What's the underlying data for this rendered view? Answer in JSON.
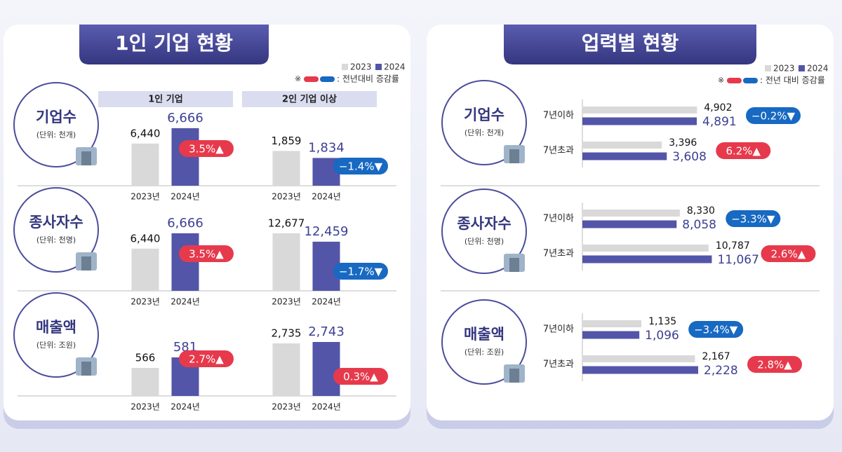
{
  "chart_data": [
    {
      "type": "bar",
      "title": "1인 기업 현황",
      "series": [
        {
          "name": "2023",
          "color": "#d9d9d9"
        },
        {
          "name": "2024",
          "color": "#5355a8"
        }
      ],
      "change_colors": [
        "#e63a4c",
        "#1769c2"
      ],
      "note_mark": "※",
      "note": ": 전년대비 증감률",
      "columns": [
        "1인 기업",
        "2인 기업 이상"
      ],
      "categories": [
        "2023년",
        "2024년"
      ],
      "rows": [
        {
          "label": "기업수",
          "unit": "(단위: 천개)",
          "charts": [
            {
              "values": [
                6440,
                6666
              ],
              "value_labels": [
                "6,440",
                "6,666"
              ],
              "change": 3.5,
              "change_label": "3.5%▲",
              "ylim": [
                5820,
                6850
              ]
            },
            {
              "values": [
                1859,
                1834
              ],
              "value_labels": [
                "1,859",
                "1,834"
              ],
              "change": -1.4,
              "change_label": "−1.4%▼",
              "ylim": [
                1735,
                1985
              ]
            }
          ]
        },
        {
          "label": "종사자수",
          "unit": "(단위: 천명)",
          "charts": [
            {
              "values": [
                6440,
                6666
              ],
              "value_labels": [
                "6,440",
                "6,666"
              ],
              "change": 3.5,
              "change_label": "3.5%▲",
              "ylim": [
                5820,
                6850
              ]
            },
            {
              "values": [
                12677,
                12459
              ],
              "value_labels": [
                "12,677",
                "12,459"
              ],
              "change": -1.7,
              "change_label": "−1.7%▼",
              "ylim": [
                11190,
                13000
              ]
            }
          ]
        },
        {
          "label": "매출액",
          "unit": "(단위: 조원)",
          "charts": [
            {
              "values": [
                566,
                581
              ],
              "value_labels": [
                "566",
                "581"
              ],
              "change": 2.7,
              "change_label": "2.7%▲",
              "ylim": [
                526,
                626
              ]
            },
            {
              "values": [
                2735,
                2743
              ],
              "value_labels": [
                "2,735",
                "2,743"
              ],
              "change": 0.3,
              "change_label": "0.3%▲",
              "ylim": [
                2435,
                2835
              ]
            }
          ]
        }
      ]
    },
    {
      "type": "barh",
      "title": "업력별 현황",
      "series": [
        {
          "name": "2023",
          "color": "#d9d9d9"
        },
        {
          "name": "2024",
          "color": "#5355a8"
        }
      ],
      "change_colors": [
        "#e63a4c",
        "#1769c2"
      ],
      "note_mark": "※",
      "note": ": 전년 대비 증감률",
      "rows": [
        {
          "label": "기업수",
          "unit": "(단위: 천개)",
          "xlim": [
            0,
            6000
          ],
          "groups": [
            {
              "label": "7년이하",
              "values": [
                4902,
                4891
              ],
              "value_labels": [
                "4,902",
                "4,891"
              ],
              "change": -0.2,
              "change_label": "−0.2%▼"
            },
            {
              "label": "7년초과",
              "values": [
                3396,
                3608
              ],
              "value_labels": [
                "3,396",
                "3,608"
              ],
              "change": 6.2,
              "change_label": "6.2%▲"
            }
          ]
        },
        {
          "label": "종사자수",
          "unit": "(단위: 천명)",
          "xlim": [
            0,
            12000
          ],
          "groups": [
            {
              "label": "7년이하",
              "values": [
                8330,
                8058
              ],
              "value_labels": [
                "8,330",
                "8,058"
              ],
              "change": -3.3,
              "change_label": "−3.3%▼"
            },
            {
              "label": "7년초과",
              "values": [
                10787,
                11067
              ],
              "value_labels": [
                "10,787",
                "11,067"
              ],
              "change": 2.6,
              "change_label": "2.6%▲"
            }
          ]
        },
        {
          "label": "매출액",
          "unit": "(단위: 조원)",
          "xlim": [
            0,
            2700
          ],
          "groups": [
            {
              "label": "7년이하",
              "values": [
                1135,
                1096
              ],
              "value_labels": [
                "1,135",
                "1,096"
              ],
              "change": -3.4,
              "change_label": "−3.4%▼"
            },
            {
              "label": "7년초과",
              "values": [
                2167,
                2228
              ],
              "value_labels": [
                "2,167",
                "2,228"
              ],
              "change": 2.8,
              "change_label": "2.8%▲"
            }
          ]
        }
      ]
    }
  ]
}
